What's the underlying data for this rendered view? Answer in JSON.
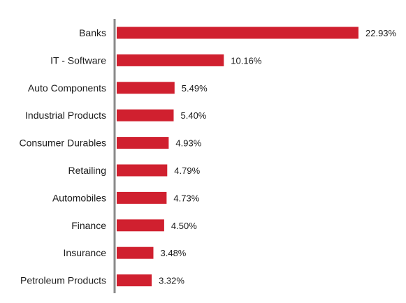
{
  "chart_data": {
    "type": "bar",
    "orientation": "horizontal",
    "categories": [
      "Banks",
      "IT - Software",
      "Auto Components",
      "Industrial Products",
      "Consumer Durables",
      "Retailing",
      "Automobiles",
      "Finance",
      "Insurance",
      "Petroleum Products"
    ],
    "values": [
      22.93,
      10.16,
      5.49,
      5.4,
      4.93,
      4.79,
      4.73,
      4.5,
      3.48,
      3.32
    ],
    "value_labels": [
      "22.93%",
      "10.16%",
      "5.49%",
      "5.40%",
      "4.93%",
      "4.79%",
      "4.73%",
      "4.50%",
      "3.48%",
      "3.32%"
    ],
    "title": "",
    "xlabel": "",
    "ylabel": "",
    "xlim": [
      0,
      22.93
    ],
    "grid": false,
    "legend": "none",
    "bar_color": "#d0202f",
    "axis_color": "#8a8a8a"
  }
}
